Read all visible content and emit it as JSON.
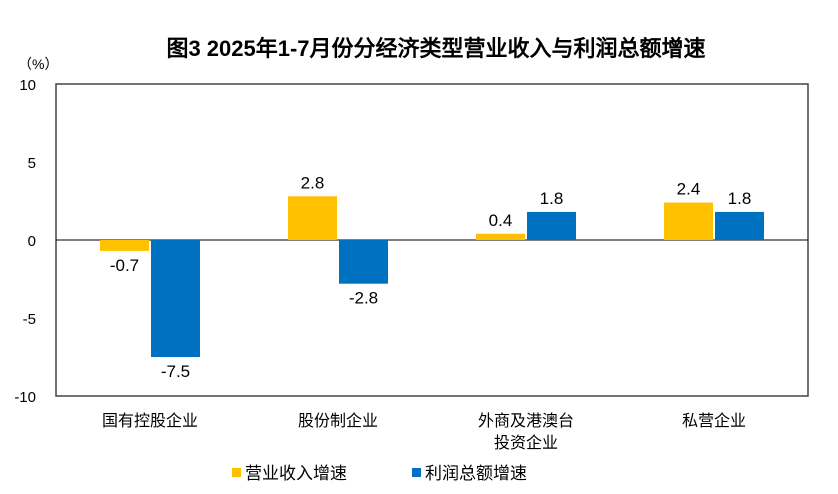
{
  "chart_data": {
    "type": "bar",
    "title": "图3 2025年1-7月份分经济类型营业收入与利润总额增速",
    "ylabel": "（%）",
    "ylim": [
      -10,
      10
    ],
    "yticks": [
      10,
      5,
      0,
      -5,
      -10
    ],
    "grid": false,
    "legend_position": "bottom",
    "categories": [
      "国有控股企业",
      "股份制企业",
      "外商及港澳台\n投资企业",
      "私营企业"
    ],
    "series": [
      {
        "name": "营业收入增速",
        "color": "#FFC000",
        "values": [
          -0.7,
          2.8,
          0.4,
          2.4
        ]
      },
      {
        "name": "利润总额增速",
        "color": "#0070C0",
        "values": [
          -7.5,
          -2.8,
          1.8,
          1.8
        ]
      }
    ]
  }
}
